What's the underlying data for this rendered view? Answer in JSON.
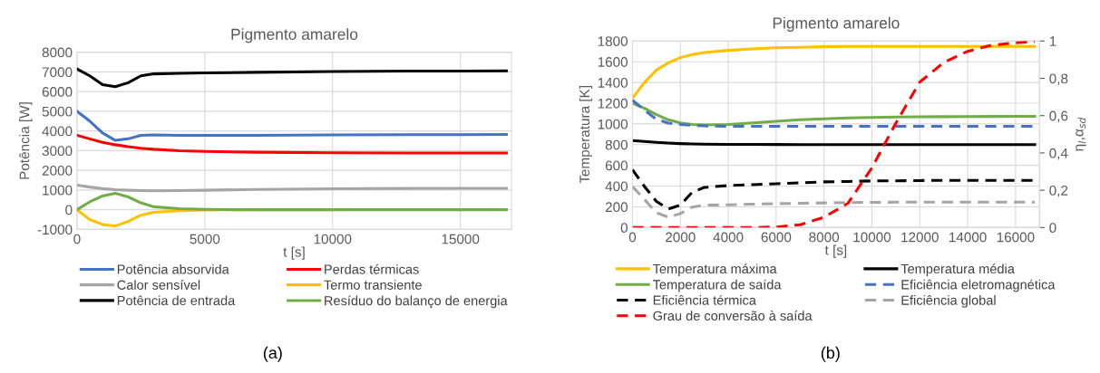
{
  "chart_data": [
    {
      "type": "line",
      "title": "Pigmento amarelo",
      "xlabel": "t [s]",
      "ylabel": "Potência [W]",
      "xlim": [
        0,
        17000
      ],
      "xticks": [
        0,
        5000,
        10000,
        15000
      ],
      "ylim": [
        -1000,
        8000
      ],
      "yticks": [
        -1000,
        0,
        1000,
        2000,
        3000,
        4000,
        5000,
        6000,
        7000,
        8000
      ],
      "grid": true,
      "legend": "bottom",
      "line_style": "solid",
      "annotations": [
        "(a)"
      ],
      "x": [
        0,
        500,
        1000,
        1500,
        2000,
        2500,
        3000,
        4000,
        5000,
        7000,
        10000,
        13000,
        16800
      ],
      "series": [
        {
          "name": "Potência absorvida",
          "color": "#4472c4",
          "values": [
            5000,
            4500,
            3900,
            3520,
            3600,
            3780,
            3800,
            3780,
            3780,
            3780,
            3800,
            3810,
            3820
          ]
        },
        {
          "name": "Perdas térmicas",
          "color": "#ff0000",
          "values": [
            3780,
            3600,
            3420,
            3300,
            3200,
            3120,
            3070,
            3000,
            2960,
            2920,
            2890,
            2880,
            2880
          ]
        },
        {
          "name": "Calor sensível",
          "color": "#a5a5a5",
          "values": [
            1250,
            1150,
            1070,
            1020,
            990,
            970,
            960,
            970,
            990,
            1030,
            1060,
            1080,
            1090
          ]
        },
        {
          "name": "Termo transiente",
          "color": "#ffc000",
          "values": [
            0,
            -500,
            -750,
            -830,
            -600,
            -280,
            -130,
            -50,
            -20,
            0,
            0,
            null,
            null
          ]
        },
        {
          "name": "Potência de entrada",
          "color": "#000000",
          "values": [
            7150,
            6800,
            6350,
            6250,
            6450,
            6800,
            6900,
            6930,
            6950,
            6980,
            7020,
            7040,
            7050
          ]
        },
        {
          "name": "Resíduo do balanço de energia",
          "color": "#70ad47",
          "values": [
            0,
            400,
            700,
            830,
            650,
            350,
            150,
            50,
            20,
            0,
            0,
            0,
            0
          ]
        }
      ]
    },
    {
      "type": "line",
      "title": "Pigmento amarelo",
      "xlabel": "t [s]",
      "ylabel": "Temperatura [K]",
      "y2label": "η$_{l}$,α$_{sd}$",
      "xlim": [
        0,
        17000
      ],
      "xticks": [
        0,
        2000,
        4000,
        6000,
        8000,
        10000,
        12000,
        14000,
        16000
      ],
      "ylim": [
        0,
        1800
      ],
      "yticks": [
        0,
        200,
        400,
        600,
        800,
        1000,
        1200,
        1400,
        1600,
        1800
      ],
      "y2lim": [
        0,
        1
      ],
      "y2ticks": [
        0,
        {
          "value": 0.2,
          "label": "0,2"
        },
        {
          "value": 0.4,
          "label": "0,4"
        },
        {
          "value": 0.6,
          "label": "0,6"
        },
        {
          "value": 0.8,
          "label": "0,8"
        },
        1
      ],
      "grid": true,
      "legend": "bottom",
      "annotations": [
        "(b)"
      ],
      "x": [
        0,
        500,
        1000,
        1500,
        2000,
        2500,
        3000,
        4000,
        5000,
        6000,
        7000,
        8000,
        9000,
        10000,
        11000,
        12000,
        13000,
        14000,
        15000,
        16000,
        16800
      ],
      "series": [
        {
          "name": "Temperatura máxima",
          "color": "#ffc000",
          "line_style": "solid",
          "values": [
            1250,
            1400,
            1520,
            1590,
            1640,
            1670,
            1690,
            1710,
            1725,
            1735,
            1740,
            1745,
            1748,
            1748,
            1748,
            1748,
            1748,
            1748,
            1748,
            1748,
            1748
          ]
        },
        {
          "name": "Temperatura média",
          "color": "#000000",
          "line_style": "solid",
          "values": [
            840,
            830,
            822,
            815,
            810,
            807,
            805,
            803,
            802,
            801,
            800,
            800,
            800,
            800,
            800,
            800,
            800,
            800,
            800,
            800,
            800
          ]
        },
        {
          "name": "Temperatura de saída",
          "color": "#70ad47",
          "line_style": "solid",
          "values": [
            1200,
            1150,
            1090,
            1040,
            1010,
            995,
            990,
            995,
            1010,
            1025,
            1040,
            1050,
            1058,
            1063,
            1066,
            1068,
            1070,
            1071,
            1072,
            1073,
            1073
          ]
        },
        {
          "name": "Eficiência eletromagnética",
          "color": "#4472c4",
          "line_style": "dashed",
          "axis": "y2",
          "values": [
            0.683,
            0.63,
            0.58,
            0.56,
            0.553,
            0.548,
            0.545,
            0.543,
            0.543,
            0.543,
            0.543,
            0.543,
            0.543,
            0.543,
            0.543,
            0.543,
            0.543,
            0.543,
            0.543,
            0.543,
            0.543
          ]
        },
        {
          "name": "Eficiência térmica",
          "color": "#000000",
          "line_style": "dashed",
          "axis": "y2",
          "values": [
            0.31,
            0.22,
            0.14,
            0.1,
            0.12,
            0.19,
            0.215,
            0.225,
            0.23,
            0.235,
            0.24,
            0.245,
            0.247,
            0.25,
            0.25,
            0.252,
            0.253,
            0.253,
            0.253,
            0.253,
            0.253
          ]
        },
        {
          "name": "Eficiência global",
          "color": "#a5a5a5",
          "line_style": "dashed",
          "axis": "y2",
          "values": [
            0.22,
            0.15,
            0.08,
            0.055,
            0.075,
            0.11,
            0.12,
            0.122,
            0.125,
            0.128,
            0.13,
            0.132,
            0.134,
            0.135,
            0.136,
            0.136,
            0.136,
            0.136,
            0.136,
            0.136,
            0.136
          ]
        },
        {
          "name": "Grau de conversão à saída",
          "color": "#ff0000",
          "line_style": "dashed",
          "axis": "y2",
          "values": [
            0,
            0,
            0,
            0,
            0,
            0,
            0,
            0,
            0,
            0.003,
            0.015,
            0.055,
            0.13,
            0.32,
            0.56,
            0.78,
            0.885,
            0.945,
            0.978,
            0.99,
            0.997
          ]
        }
      ]
    }
  ]
}
